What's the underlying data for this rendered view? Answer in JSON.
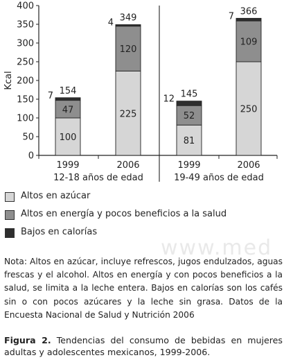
{
  "chart_data": {
    "type": "bar",
    "stacked": true,
    "ylabel": "Kcal",
    "ylim": [
      0,
      400
    ],
    "yticks": [
      0,
      50,
      100,
      150,
      200,
      250,
      300,
      350,
      400
    ],
    "grid": false,
    "categories": [
      "1999",
      "2006",
      "1999",
      "2006"
    ],
    "group_labels": [
      "12-18 años de edad",
      "19-49 años de edad"
    ],
    "series": [
      {
        "name": "Altos en azúcar",
        "color": "#d6d6d6",
        "values": [
          100,
          225,
          81,
          250
        ]
      },
      {
        "name": "Altos en energía y pocos beneficios a la salud",
        "color": "#8e8e8e",
        "values": [
          47,
          120,
          52,
          109
        ]
      },
      {
        "name": "Bajos en calorías",
        "color": "#2e2e2e",
        "values": [
          7,
          4,
          12,
          7
        ]
      }
    ],
    "totals": [
      154,
      349,
      145,
      366
    ],
    "legend_position": "bottom"
  },
  "note": "Nota: Altos en azúcar, incluye refrescos, jugos endulzados, aguas frescas y el alcohol. Altos en energía y con pocos beneficios a la salud, se limita a la leche entera. Bajos en calorías son los cafés sin o con pocos azúcares y la leche sin grasa. Datos de la Encuesta Nacional de Salud y Nutrición 2006",
  "caption": {
    "label": "Figura 2.",
    "text": " Tendencias del consumo de bebidas en mujeres adultas y adolescentes mexicanos, 1999-2006."
  },
  "watermark": "www.med"
}
